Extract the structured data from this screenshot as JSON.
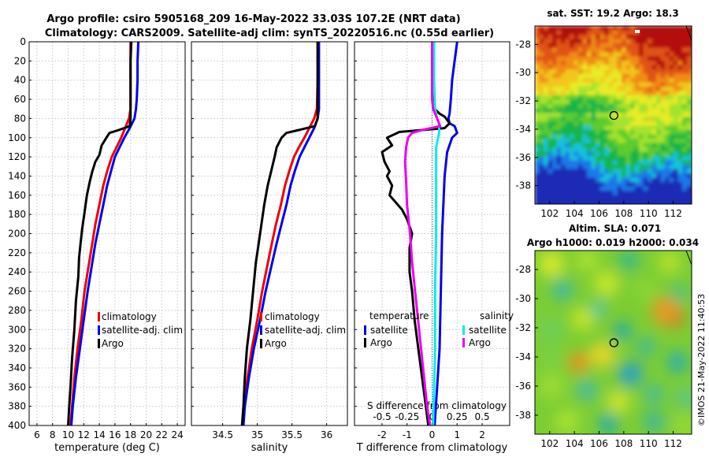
{
  "title": {
    "line1": "Argo profile: csiro 5905168_209 16-May-2022 33.03S 107.2E (NRT data)",
    "line2": "Climatology: CARS2009. Satellite-adj clim: synTS_20220516.nc (0.55d earlier)"
  },
  "colors": {
    "climatology": "#ee0000",
    "satellite": "#0000ee",
    "argo": "#000000",
    "salinity_sat": "#00eeee",
    "salinity_argo": "#ee00ee"
  },
  "chart_data": [
    {
      "type": "line",
      "id": "temperature",
      "xlabel": "temperature (deg C)",
      "ylabel": "",
      "xlim": [
        5,
        25
      ],
      "ylim": [
        400,
        0
      ],
      "xticks": [
        6,
        8,
        10,
        12,
        14,
        16,
        18,
        20,
        22,
        24
      ],
      "yticks": [
        0,
        20,
        40,
        60,
        80,
        100,
        120,
        140,
        160,
        180,
        200,
        220,
        240,
        260,
        280,
        300,
        320,
        340,
        360,
        380,
        400
      ],
      "grid": true,
      "legend": {
        "position": "bottom-right",
        "entries": [
          "climatology",
          "satellite-adj. clim",
          "Argo"
        ]
      },
      "series": [
        {
          "name": "climatology",
          "color": "#ee0000",
          "points": [
            [
              18.0,
              0
            ],
            [
              18.0,
              20
            ],
            [
              18.0,
              40
            ],
            [
              18.0,
              60
            ],
            [
              18.0,
              70
            ],
            [
              17.8,
              80
            ],
            [
              17.3,
              90
            ],
            [
              16.8,
              100
            ],
            [
              16.2,
              110
            ],
            [
              15.6,
              120
            ],
            [
              15.0,
              135
            ],
            [
              14.5,
              150
            ],
            [
              14.0,
              170
            ],
            [
              13.5,
              190
            ],
            [
              13.1,
              210
            ],
            [
              12.6,
              235
            ],
            [
              12.1,
              260
            ],
            [
              11.7,
              290
            ],
            [
              11.2,
              320
            ],
            [
              10.8,
              350
            ],
            [
              10.5,
              380
            ],
            [
              10.3,
              400
            ]
          ]
        },
        {
          "name": "satellite-adj. clim",
          "color": "#0000ee",
          "points": [
            [
              19.0,
              0
            ],
            [
              18.9,
              20
            ],
            [
              18.9,
              40
            ],
            [
              18.8,
              60
            ],
            [
              18.7,
              70
            ],
            [
              18.5,
              80
            ],
            [
              17.9,
              90
            ],
            [
              17.2,
              100
            ],
            [
              16.6,
              110
            ],
            [
              16.0,
              120
            ],
            [
              15.5,
              135
            ],
            [
              15.0,
              150
            ],
            [
              14.5,
              170
            ],
            [
              14.0,
              190
            ],
            [
              13.5,
              210
            ],
            [
              13.0,
              235
            ],
            [
              12.5,
              260
            ],
            [
              12.0,
              290
            ],
            [
              11.5,
              320
            ],
            [
              11.0,
              350
            ],
            [
              10.6,
              380
            ],
            [
              10.4,
              400
            ]
          ]
        },
        {
          "name": "Argo",
          "color": "#000000",
          "points": [
            [
              18.1,
              0
            ],
            [
              18.0,
              20
            ],
            [
              18.0,
              40
            ],
            [
              18.0,
              60
            ],
            [
              18.0,
              70
            ],
            [
              18.0,
              80
            ],
            [
              17.9,
              88
            ],
            [
              16.5,
              92
            ],
            [
              15.3,
              95
            ],
            [
              14.9,
              100
            ],
            [
              14.3,
              108
            ],
            [
              14.0,
              118
            ],
            [
              13.5,
              125
            ],
            [
              13.1,
              135
            ],
            [
              12.8,
              145
            ],
            [
              12.4,
              160
            ],
            [
              12.1,
              178
            ],
            [
              11.8,
              195
            ],
            [
              11.6,
              210
            ],
            [
              11.4,
              225
            ],
            [
              11.3,
              245
            ],
            [
              11.0,
              270
            ],
            [
              10.8,
              300
            ],
            [
              10.5,
              330
            ],
            [
              10.3,
              360
            ],
            [
              10.1,
              385
            ],
            [
              10.0,
              400
            ]
          ]
        }
      ]
    },
    {
      "type": "line",
      "id": "salinity",
      "xlabel": "salinity",
      "ylabel": "",
      "xlim": [
        34.05,
        36.3
      ],
      "ylim": [
        400,
        0
      ],
      "xticks": [
        34.5,
        35,
        35.5,
        36
      ],
      "xtick_labels": [
        "34.5",
        "35",
        "35.5",
        "36"
      ],
      "grid": true,
      "legend": {
        "position": "bottom-right",
        "entries": [
          "climatology",
          "satellite-adj. clim",
          "Argo"
        ]
      },
      "series": [
        {
          "name": "climatology",
          "color": "#ee0000",
          "points": [
            [
              35.87,
              0
            ],
            [
              35.87,
              40
            ],
            [
              35.86,
              70
            ],
            [
              35.82,
              80
            ],
            [
              35.75,
              90
            ],
            [
              35.68,
              100
            ],
            [
              35.6,
              110
            ],
            [
              35.53,
              120
            ],
            [
              35.46,
              135
            ],
            [
              35.4,
              150
            ],
            [
              35.34,
              170
            ],
            [
              35.27,
              190
            ],
            [
              35.21,
              210
            ],
            [
              35.14,
              235
            ],
            [
              35.07,
              260
            ],
            [
              35.0,
              290
            ],
            [
              34.92,
              320
            ],
            [
              34.86,
              350
            ],
            [
              34.81,
              380
            ],
            [
              34.79,
              400
            ]
          ]
        },
        {
          "name": "satellite-adj. clim",
          "color": "#0000ee",
          "points": [
            [
              35.89,
              0
            ],
            [
              35.89,
              40
            ],
            [
              35.89,
              70
            ],
            [
              35.87,
              80
            ],
            [
              35.82,
              90
            ],
            [
              35.75,
              100
            ],
            [
              35.68,
              110
            ],
            [
              35.61,
              120
            ],
            [
              35.54,
              135
            ],
            [
              35.48,
              150
            ],
            [
              35.42,
              170
            ],
            [
              35.35,
              190
            ],
            [
              35.28,
              210
            ],
            [
              35.2,
              235
            ],
            [
              35.12,
              260
            ],
            [
              35.04,
              290
            ],
            [
              34.95,
              320
            ],
            [
              34.88,
              350
            ],
            [
              34.82,
              380
            ],
            [
              34.8,
              400
            ]
          ]
        },
        {
          "name": "Argo",
          "color": "#000000",
          "points": [
            [
              35.87,
              0
            ],
            [
              35.87,
              40
            ],
            [
              35.87,
              70
            ],
            [
              35.87,
              80
            ],
            [
              35.83,
              88
            ],
            [
              35.6,
              92
            ],
            [
              35.42,
              95
            ],
            [
              35.35,
              100
            ],
            [
              35.28,
              110
            ],
            [
              35.25,
              120
            ],
            [
              35.2,
              135
            ],
            [
              35.15,
              150
            ],
            [
              35.1,
              170
            ],
            [
              35.06,
              190
            ],
            [
              35.02,
              210
            ],
            [
              34.98,
              230
            ],
            [
              34.94,
              260
            ],
            [
              34.9,
              290
            ],
            [
              34.85,
              320
            ],
            [
              34.82,
              350
            ],
            [
              34.8,
              380
            ],
            [
              34.78,
              400
            ]
          ]
        }
      ]
    },
    {
      "type": "line",
      "id": "difference",
      "xlabel": "T difference from climatology",
      "x2label": "S difference from climatology",
      "xlim": [
        -3.1,
        3.1
      ],
      "ylim": [
        400,
        0
      ],
      "xticks": [
        -2,
        -1,
        0,
        1,
        2
      ],
      "xtick_labels": [
        "-2",
        "-1",
        "0",
        "1",
        "2"
      ],
      "x2ticks": [
        -0.5,
        -0.25,
        0,
        0.25,
        0.5
      ],
      "x2tick_labels": [
        "-0.5",
        "-0.25",
        "0",
        "0.25",
        "0.5"
      ],
      "x2lim": [
        -0.775,
        0.775
      ],
      "grid": true,
      "legend": {
        "position": "bottom",
        "temperature_header": "temperature",
        "salinity_header": "salinity",
        "entries": [
          "satellite",
          "Argo",
          "satellite",
          "Argo"
        ]
      },
      "series": [
        {
          "name": "T satellite",
          "axis": "T",
          "color": "#0000ee",
          "points": [
            [
              1.0,
              0
            ],
            [
              0.9,
              20
            ],
            [
              0.8,
              40
            ],
            [
              0.75,
              60
            ],
            [
              0.7,
              75
            ],
            [
              0.65,
              80
            ],
            [
              0.7,
              85
            ],
            [
              0.9,
              88
            ],
            [
              1.0,
              95
            ],
            [
              0.8,
              100
            ],
            [
              0.6,
              115
            ],
            [
              0.5,
              140
            ],
            [
              0.4,
              200
            ],
            [
              0.35,
              260
            ],
            [
              0.3,
              320
            ],
            [
              0.2,
              360
            ],
            [
              0.1,
              400
            ]
          ]
        },
        {
          "name": "T Argo",
          "axis": "T",
          "color": "#000000",
          "points": [
            [
              0.0,
              0
            ],
            [
              0.0,
              20
            ],
            [
              0.0,
              40
            ],
            [
              0.05,
              60
            ],
            [
              0.1,
              70
            ],
            [
              0.3,
              75
            ],
            [
              0.5,
              78
            ],
            [
              0.7,
              85
            ],
            [
              0.5,
              90
            ],
            [
              -1.3,
              94
            ],
            [
              -1.8,
              100
            ],
            [
              -1.6,
              108
            ],
            [
              -2.0,
              115
            ],
            [
              -1.9,
              125
            ],
            [
              -1.7,
              135
            ],
            [
              -1.8,
              140
            ],
            [
              -1.6,
              150
            ],
            [
              -1.7,
              160
            ],
            [
              -1.2,
              175
            ],
            [
              -1.0,
              185
            ],
            [
              -0.8,
              200
            ],
            [
              -0.9,
              215
            ],
            [
              -0.9,
              240
            ],
            [
              -0.8,
              260
            ],
            [
              -0.7,
              290
            ],
            [
              -0.5,
              330
            ],
            [
              -0.3,
              370
            ],
            [
              -0.15,
              400
            ]
          ]
        },
        {
          "name": "S satellite",
          "axis": "S",
          "color": "#00eeee",
          "points": [
            [
              0.02,
              0
            ],
            [
              0.02,
              40
            ],
            [
              0.03,
              70
            ],
            [
              0.05,
              80
            ],
            [
              0.07,
              85
            ],
            [
              0.07,
              95
            ],
            [
              0.04,
              110
            ],
            [
              0.04,
              140
            ],
            [
              0.04,
              200
            ],
            [
              0.03,
              260
            ],
            [
              0.03,
              320
            ],
            [
              0.02,
              360
            ],
            [
              0.01,
              400
            ]
          ]
        },
        {
          "name": "S Argo",
          "axis": "S",
          "color": "#ee00ee",
          "points": [
            [
              0.0,
              0
            ],
            [
              0.0,
              60
            ],
            [
              0.01,
              70
            ],
            [
              0.05,
              80
            ],
            [
              0.08,
              88
            ],
            [
              -0.1,
              92
            ],
            [
              -0.2,
              95
            ],
            [
              -0.24,
              100
            ],
            [
              -0.26,
              110
            ],
            [
              -0.27,
              125
            ],
            [
              -0.26,
              145
            ],
            [
              -0.25,
              170
            ],
            [
              -0.22,
              200
            ],
            [
              -0.2,
              230
            ],
            [
              -0.17,
              260
            ],
            [
              -0.14,
              290
            ],
            [
              -0.11,
              320
            ],
            [
              -0.08,
              350
            ],
            [
              -0.05,
              380
            ],
            [
              -0.02,
              400
            ]
          ]
        }
      ]
    },
    {
      "type": "heatmap",
      "id": "sst-map",
      "title": "sat. SST: 19.2 Argo: 18.3",
      "xticks": [
        102,
        104,
        106,
        108,
        110,
        112
      ],
      "yticks": [
        -28,
        -30,
        -32,
        -34,
        -36,
        -38
      ],
      "xlim": [
        100.8,
        113.5
      ],
      "ylim": [
        -39.3,
        -26.7
      ],
      "marker": {
        "lon": 107.2,
        "lat": -33.03
      },
      "colors": [
        "#1c2cb5",
        "#1f78e8",
        "#17c2d8",
        "#18b54a",
        "#5bcc2f",
        "#a6e22e",
        "#e6ec28",
        "#f2c61a",
        "#f08c12",
        "#e05212",
        "#b41010"
      ]
    },
    {
      "type": "heatmap",
      "id": "sla-map",
      "title": "Altim. SLA: 0.071",
      "subtitle": "Argo h1000: 0.019 h2000: 0.034",
      "xticks": [
        102,
        104,
        106,
        108,
        110,
        112
      ],
      "yticks": [
        -28,
        -30,
        -32,
        -34,
        -36,
        -38
      ],
      "xlim": [
        100.8,
        113.5
      ],
      "ylim": [
        -39.3,
        -26.7
      ],
      "marker": {
        "lon": 107.2,
        "lat": -33.03
      }
    }
  ],
  "watermark": "©IMOS 21-May-2022 11:40:53"
}
